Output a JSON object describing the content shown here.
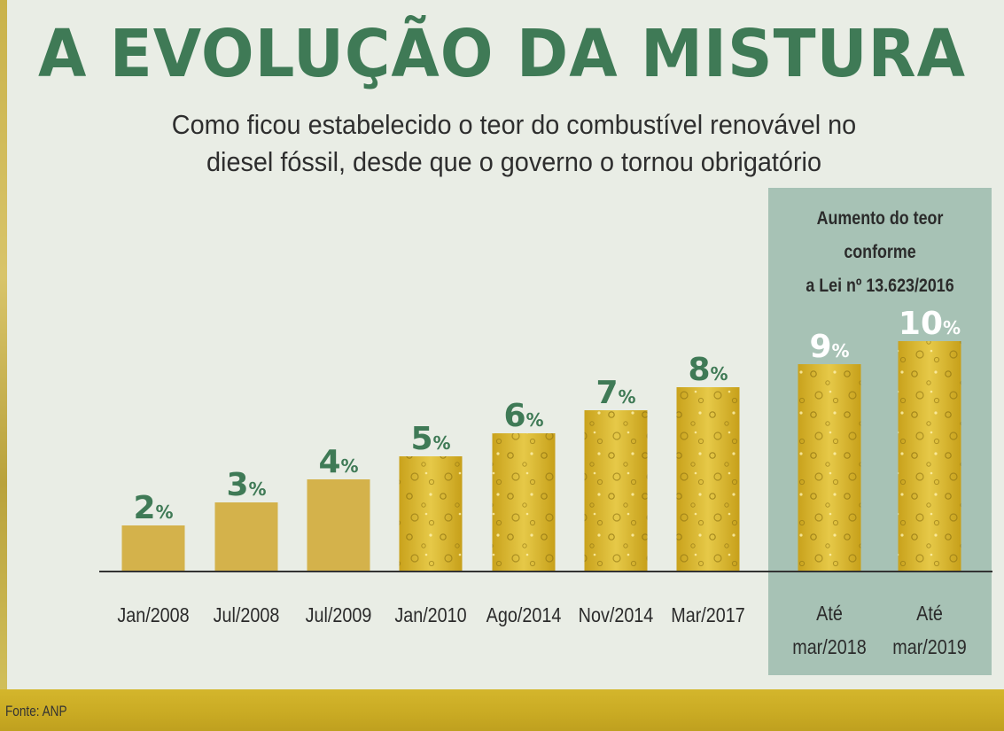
{
  "header": {
    "title": "A EVOLUÇÃO DA MISTURA",
    "subtitle_line1": "Como ficou estabelecido o teor do combustível renovável no",
    "subtitle_line2": "diesel fóssil, desde que o governo o tornou obrigatório"
  },
  "highlight": {
    "caption_line1": "Aumento do teor conforme",
    "caption_line2": "a Lei nº 13.623/2016"
  },
  "source": "Fonte: ANP",
  "colors": {
    "title": "#3f7a56",
    "value_label": "#3f7a56",
    "highlight_value_label": "#ffffff",
    "flat_bar": "#d4b24b",
    "bubbly_bar": "#d9b830",
    "highlight_panel": "#a7c2b5"
  },
  "chart_data": {
    "type": "bar",
    "title": "A EVOLUÇÃO DA MISTURA",
    "xlabel": "",
    "ylabel": "",
    "unit": "%",
    "categories": [
      [
        "Jan/2008"
      ],
      [
        "Jul/2008"
      ],
      [
        "Jul/2009"
      ],
      [
        "Jan/2010"
      ],
      [
        "Ago/2014"
      ],
      [
        "Nov/2014"
      ],
      [
        "Mar/2017"
      ],
      [
        "Até",
        "mar/2018"
      ],
      [
        "Até",
        "mar/2019"
      ]
    ],
    "values": [
      2,
      3,
      4,
      5,
      6,
      7,
      8,
      9,
      10
    ],
    "value_labels": [
      "2",
      "3",
      "4",
      "5",
      "6",
      "7",
      "8",
      "9",
      "10"
    ],
    "highlighted": [
      false,
      false,
      false,
      false,
      false,
      false,
      false,
      true,
      true
    ],
    "bar_style": [
      "flat",
      "flat",
      "flat",
      "bubbly",
      "bubbly",
      "bubbly",
      "bubbly",
      "bubbly",
      "bubbly"
    ],
    "grid": false,
    "legend": "none"
  }
}
